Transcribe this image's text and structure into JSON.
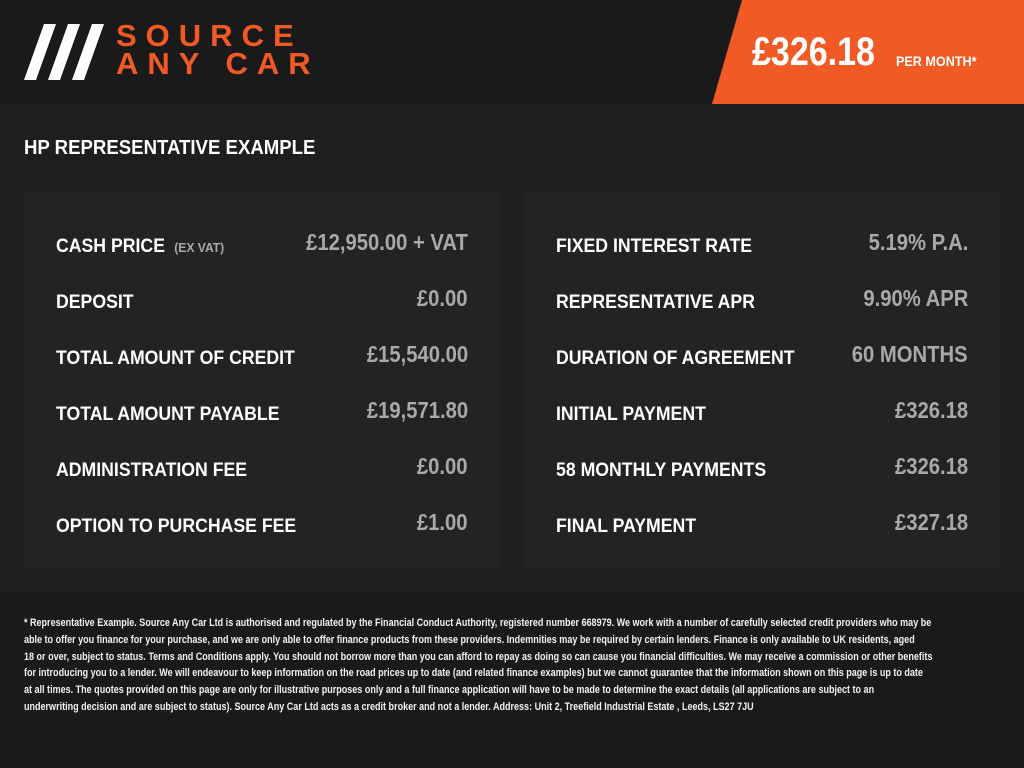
{
  "brand": {
    "line1": "SOURCE",
    "line2": "ANY CAR",
    "accent": "#f15a24"
  },
  "badge": {
    "price": "£326.18",
    "suffix": "PER MONTH*"
  },
  "section_title": "HP REPRESENTATIVE EXAMPLE",
  "left_rows": [
    {
      "label": "CASH PRICE",
      "note": "(EX VAT)",
      "value": "£12,950.00 + VAT"
    },
    {
      "label": "DEPOSIT",
      "value": "£0.00"
    },
    {
      "label": "TOTAL AMOUNT OF CREDIT",
      "value": "£15,540.00"
    },
    {
      "label": "TOTAL AMOUNT PAYABLE",
      "value": "£19,571.80"
    },
    {
      "label": "ADMINISTRATION FEE",
      "value": "£0.00"
    },
    {
      "label": "OPTION TO PURCHASE FEE",
      "value": "£1.00"
    }
  ],
  "right_rows": [
    {
      "label": "FIXED INTEREST RATE",
      "value": "5.19% P.A."
    },
    {
      "label": "REPRESENTATIVE APR",
      "value": "9.90% APR"
    },
    {
      "label": "DURATION OF AGREEMENT",
      "value": "60 MONTHS"
    },
    {
      "label": "INITIAL PAYMENT",
      "value": "£326.18"
    },
    {
      "label": "58 MONTHLY PAYMENTS",
      "value": "£326.18"
    },
    {
      "label": "FINAL PAYMENT",
      "value": "£327.18"
    }
  ],
  "disclaimer_lines": [
    "* Representative Example. Source Any Car Ltd is authorised and regulated by the Financial Conduct Authority, registered number 668979. We work with a number of carefully selected credit providers who may be",
    "able to offer you finance for your purchase, and we are only able to offer finance products from these providers. Indemnities may be required by certain lenders. Finance is only available to UK residents, aged",
    "18 or over, subject to status. Terms and Conditions apply. You should not borrow more than you can afford to repay as doing so can cause you financial difficulties. We may receive a commission or other benefits",
    "for introducing you to a lender. We will endeavour to keep information on the road prices up to date (and related finance examples) but we cannot guarantee that the information shown on this page is up to date",
    "at all times. The quotes provided on this page are only for illustrative purposes only and a full finance application will have to be made to determine the exact details (all applications are subject to an",
    "underwriting decision and are subject to status). Source Any Car Ltd acts as a credit broker and not a lender. Address: Unit 2, Treefield Industrial Estate , Leeds, LS27 7JU"
  ]
}
